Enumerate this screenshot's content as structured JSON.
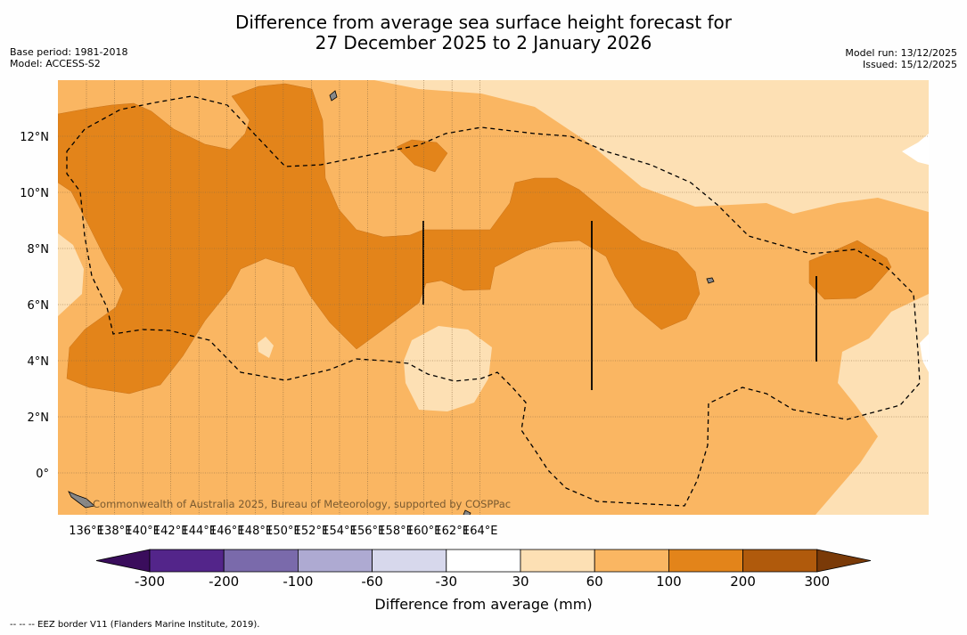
{
  "header": {
    "title_line1": "Difference from average sea surface height forecast for",
    "title_line2": "27 December 2025 to 2 January 2026",
    "base_period": "Base period: 1981-2018",
    "model": "Model: ACCESS-S2",
    "model_run": "Model run: 13/12/2025",
    "issued": "Issued: 15/12/2025"
  },
  "map": {
    "lon_labels": [
      "136°E",
      "138°E",
      "140°E",
      "142°E",
      "144°E",
      "146°E",
      "148°E",
      "150°E",
      "152°E",
      "154°E",
      "156°E",
      "158°E",
      "160°E",
      "162°E",
      "164°E"
    ],
    "lat_labels": [
      "12°N",
      "10°N",
      "8°N",
      "6°N",
      "4°N",
      "2°N",
      "0°"
    ],
    "watermark": "Commonwealth of Australia 2025, Bureau of Meteorology, supported by COSPPac",
    "band_colors": {
      "30_60": "#fde0b4",
      "60_100": "#fab662",
      "100_200": "#e3841a",
      "land": "#888888"
    }
  },
  "colorbar": {
    "ticks": [
      "-300",
      "-200",
      "-100",
      "-60",
      "-30",
      "30",
      "60",
      "100",
      "200",
      "300"
    ],
    "colors": [
      "#3a0d5c",
      "#53258a",
      "#7a6aab",
      "#aeaad2",
      "#d7d8ec",
      "#ffffff",
      "#fde0b4",
      "#fab662",
      "#e3841a",
      "#b05a0c",
      "#7a3a08"
    ],
    "label": "Difference from average (mm)"
  },
  "footnote": "--  --  -- EEZ border V11 (Flanders Marine Institute, 2019)."
}
